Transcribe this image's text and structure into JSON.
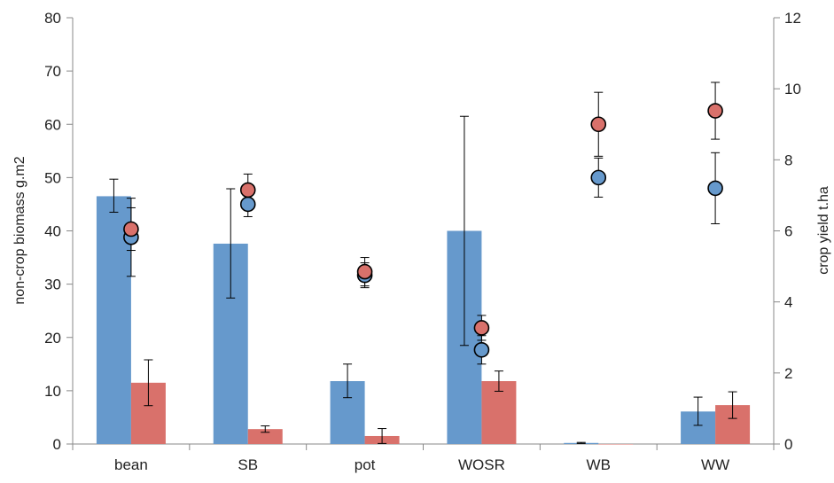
{
  "chart_data": {
    "type": "bar",
    "title": "",
    "categories": [
      "bean",
      "SB",
      "pot",
      "WOSR",
      "WB",
      "WW"
    ],
    "ylabel": "non-crop biomass g.m2",
    "y2label": "crop yield t.ha",
    "ylim": [
      0,
      80
    ],
    "y2lim": [
      0,
      12
    ],
    "yticks": [
      "0",
      "10",
      "20",
      "30",
      "40",
      "50",
      "60",
      "70",
      "80"
    ],
    "y2ticks": [
      "0",
      "2",
      "4",
      "6",
      "8",
      "10",
      "12"
    ],
    "grid": false,
    "legend": "none",
    "bar_series": [
      {
        "axis": "left",
        "color": "#6699cc",
        "values": [
          46.5,
          37.6,
          11.8,
          40.0,
          0.2,
          6.1
        ],
        "err_low": [
          3.0,
          10.2,
          3.1,
          21.5,
          0.1,
          2.6
        ],
        "err_high": [
          3.2,
          10.3,
          3.2,
          21.5,
          0.1,
          2.7
        ]
      },
      {
        "axis": "left",
        "color": "#d9716b",
        "values": [
          11.5,
          2.8,
          1.5,
          11.8,
          0.0,
          7.3
        ],
        "err_low": [
          4.3,
          0.6,
          1.4,
          1.9,
          0.0,
          2.5
        ],
        "err_high": [
          4.3,
          0.6,
          1.4,
          1.9,
          0.0,
          2.5
        ]
      }
    ],
    "point_series": [
      {
        "axis": "right",
        "color": "#6699cc",
        "values": [
          5.82,
          6.75,
          4.75,
          2.65,
          7.5,
          7.2
        ],
        "err_low": [
          1.1,
          0.35,
          0.35,
          0.4,
          0.55,
          1.0
        ],
        "err_high": [
          1.1,
          0.35,
          0.35,
          0.4,
          0.55,
          1.0
        ]
      },
      {
        "axis": "right",
        "color": "#d9716b",
        "values": [
          6.05,
          7.15,
          4.85,
          3.27,
          9.0,
          9.38
        ],
        "err_low": [
          0.6,
          0.45,
          0.4,
          0.35,
          0.9,
          0.8
        ],
        "err_high": [
          0.6,
          0.45,
          0.4,
          0.35,
          0.9,
          0.8
        ]
      }
    ]
  }
}
